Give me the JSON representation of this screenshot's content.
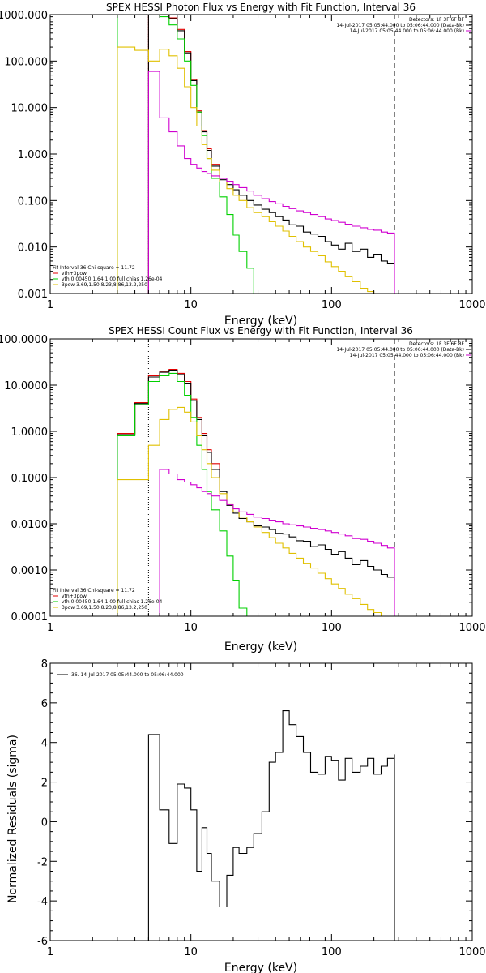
{
  "chart_data": [
    {
      "type": "line",
      "title": "SPEX HESSI Photon Flux vs Energy with Fit Function, Interval 36",
      "xlabel": "Energy (keV)",
      "ylabel": "",
      "x_scale": "log",
      "y_scale": "log",
      "xlim": [
        1,
        1000
      ],
      "ylim": [
        0.001,
        1000
      ],
      "x_ticks": [
        1,
        10,
        100,
        1000
      ],
      "x_tick_labels": [
        "1",
        "10",
        "100",
        "1000"
      ],
      "y_ticks": [
        0.001,
        0.01,
        0.1,
        1,
        10,
        100,
        1000
      ],
      "y_tick_labels": [
        "0.001",
        "0.010",
        "0.100",
        "1.000",
        "10.000",
        "100.000",
        "1000.000"
      ],
      "vlines": [
        {
          "x": 5,
          "style": "dotted"
        },
        {
          "x": 280,
          "style": "dashed"
        }
      ],
      "info_lines": [
        "Detectors: 1F 3F 6F 8F",
        "14-Jul-2017 05:05:44.000 to 05:06:44.000 (Data-Bk)",
        "14-Jul-2017 05:05:44.000 to 05:06:44.000 (Bk)"
      ],
      "fit_label": "Fit Interval 36   Chi-square = 11.72",
      "series": [
        {
          "name": "vth+3pow",
          "color": "#e00000",
          "x": [
            5,
            6,
            7,
            8,
            9,
            10,
            11,
            12,
            13,
            14,
            16
          ],
          "y": [
            1000,
            1000,
            850,
            480,
            160,
            40,
            8.5,
            3.2,
            1.3,
            0.6,
            0.32
          ]
        },
        {
          "name": "",
          "color": "#000000",
          "x": [
            5,
            6,
            7,
            8,
            9,
            10,
            11,
            12,
            13,
            14,
            16,
            18,
            20,
            22,
            25,
            28,
            32,
            36,
            40,
            45,
            50,
            56,
            63,
            71,
            80,
            90,
            100,
            112,
            125,
            140,
            160,
            180,
            200,
            225,
            250,
            280
          ],
          "y": [
            1000,
            980,
            820,
            450,
            150,
            38,
            8,
            3,
            1.2,
            0.55,
            0.28,
            0.22,
            0.17,
            0.13,
            0.1,
            0.08,
            0.065,
            0.055,
            0.045,
            0.038,
            0.03,
            0.028,
            0.021,
            0.019,
            0.017,
            0.013,
            0.011,
            0.009,
            0.012,
            0.008,
            0.009,
            0.006,
            0.007,
            0.005,
            0.0045,
            0.0045
          ]
        },
        {
          "name": "vth 0.00450,1.64,1.00  full chias 1.26e-04",
          "color": "#00d000",
          "x": [
            3,
            5,
            6,
            7,
            8,
            9,
            10,
            11,
            12,
            13,
            14,
            16,
            18,
            20,
            22,
            25,
            28
          ],
          "y": [
            1000,
            1000,
            900,
            600,
            300,
            100,
            30,
            8,
            2.5,
            0.8,
            0.3,
            0.12,
            0.05,
            0.018,
            0.008,
            0.0035,
            0.001
          ]
        },
        {
          "name": "3pow 3.69,1.50,8.23,8.86,13.2,250",
          "color": "#e0c000",
          "x": [
            3,
            4,
            5,
            6,
            7,
            8,
            9,
            10,
            11,
            12,
            13,
            14,
            16,
            18,
            20,
            22,
            25,
            28,
            32,
            36,
            40,
            45,
            50,
            56,
            63,
            71,
            80,
            90,
            100,
            112,
            125,
            140,
            160,
            180,
            200
          ],
          "y": [
            200,
            170,
            100,
            180,
            130,
            70,
            28,
            10,
            4,
            1.6,
            0.8,
            0.45,
            0.25,
            0.18,
            0.13,
            0.1,
            0.07,
            0.055,
            0.045,
            0.035,
            0.028,
            0.022,
            0.017,
            0.013,
            0.01,
            0.008,
            0.0065,
            0.0048,
            0.0038,
            0.003,
            0.0023,
            0.0018,
            0.0013,
            0.0011,
            0.001
          ]
        },
        {
          "name": "",
          "color": "#d000d0",
          "x": [
            5,
            6,
            7,
            8,
            9,
            10,
            11,
            12,
            13,
            14,
            16,
            18,
            20,
            22,
            25,
            28,
            32,
            36,
            40,
            45,
            50,
            56,
            63,
            71,
            80,
            90,
            100,
            112,
            125,
            140,
            160,
            180,
            200,
            225,
            250,
            280
          ],
          "y": [
            60,
            6,
            3,
            1.5,
            0.8,
            0.6,
            0.5,
            0.42,
            0.38,
            0.34,
            0.3,
            0.26,
            0.22,
            0.19,
            0.16,
            0.13,
            0.11,
            0.095,
            0.085,
            0.075,
            0.067,
            0.06,
            0.055,
            0.05,
            0.045,
            0.04,
            0.037,
            0.034,
            0.031,
            0.028,
            0.026,
            0.024,
            0.023,
            0.021,
            0.02,
            0.02
          ]
        }
      ]
    },
    {
      "type": "line",
      "title": "SPEX HESSI Count Flux vs Energy with Fit Function, Interval 36",
      "xlabel": "Energy (keV)",
      "ylabel": "",
      "x_scale": "log",
      "y_scale": "log",
      "xlim": [
        1,
        1000
      ],
      "ylim": [
        0.0001,
        100
      ],
      "x_ticks": [
        1,
        10,
        100,
        1000
      ],
      "x_tick_labels": [
        "1",
        "10",
        "100",
        "1000"
      ],
      "y_ticks": [
        0.0001,
        0.001,
        0.01,
        0.1,
        1,
        10,
        100
      ],
      "y_tick_labels": [
        "0.0001",
        "0.0010",
        "0.0100",
        "0.1000",
        "1.0000",
        "10.0000",
        "100.0000"
      ],
      "vlines": [
        {
          "x": 5,
          "style": "dotted"
        },
        {
          "x": 280,
          "style": "dashed"
        }
      ],
      "info_lines": [
        "Detectors: 1F 3F 6F 8F",
        "14-Jul-2017 05:05:44.000 to 05:06:44.000 (Data-Bk)",
        "14-Jul-2017 05:05:44.000 to 05:06:44.000 (Bk)"
      ],
      "fit_label": "Fit Interval 36   Chi-square = 11.72",
      "series": [
        {
          "name": "vth+3pow",
          "color": "#e00000",
          "x": [
            3,
            4,
            5,
            6,
            7,
            8,
            9,
            10,
            11,
            12,
            13,
            14,
            16
          ],
          "y": [
            0.9,
            4.2,
            16,
            20,
            22,
            18,
            12,
            5,
            2,
            0.9,
            0.4,
            0.2,
            0.06
          ]
        },
        {
          "name": "",
          "color": "#000000",
          "x": [
            3,
            4,
            5,
            6,
            7,
            8,
            9,
            10,
            11,
            12,
            13,
            14,
            16,
            18,
            20,
            22,
            25,
            28,
            32,
            36,
            40,
            45,
            50,
            56,
            63,
            71,
            80,
            90,
            100,
            112,
            125,
            140,
            160,
            180,
            200,
            225,
            250,
            280
          ],
          "y": [
            0.85,
            4,
            15,
            19,
            21,
            17,
            11,
            4.6,
            1.8,
            0.8,
            0.35,
            0.15,
            0.05,
            0.025,
            0.017,
            0.013,
            0.011,
            0.009,
            0.0085,
            0.0075,
            0.0062,
            0.006,
            0.0052,
            0.0043,
            0.0042,
            0.0032,
            0.0035,
            0.0028,
            0.0022,
            0.0025,
            0.0018,
            0.0013,
            0.0016,
            0.0012,
            0.001,
            0.0008,
            0.0007,
            0.0006
          ]
        },
        {
          "name": "vth 0.00450,1.64,1.00  full chias 1.26e-04",
          "color": "#00d000",
          "x": [
            3,
            4,
            5,
            6,
            7,
            8,
            9,
            10,
            11,
            12,
            13,
            14,
            16,
            18,
            20,
            22,
            25,
            28
          ],
          "y": [
            0.8,
            3.8,
            12,
            16,
            18,
            12,
            6,
            2,
            0.5,
            0.15,
            0.05,
            0.02,
            0.007,
            0.002,
            0.0006,
            0.00015,
            0.0001,
            0.0001
          ]
        },
        {
          "name": "3pow 3.69,1.50,8.23,8.86,13.2,250",
          "color": "#e0c000",
          "x": [
            3,
            4,
            5,
            6,
            7,
            8,
            9,
            10,
            11,
            12,
            13,
            14,
            16,
            18,
            20,
            22,
            25,
            28,
            32,
            36,
            40,
            45,
            50,
            56,
            63,
            71,
            80,
            90,
            100,
            112,
            125,
            140,
            160,
            180,
            200,
            225,
            250,
            280
          ],
          "y": [
            0.09,
            0.09,
            0.5,
            1.8,
            3,
            3.3,
            2.6,
            1.6,
            0.8,
            0.4,
            0.2,
            0.1,
            0.045,
            0.027,
            0.018,
            0.014,
            0.011,
            0.0085,
            0.0065,
            0.005,
            0.0038,
            0.003,
            0.0023,
            0.0018,
            0.0014,
            0.0011,
            0.00085,
            0.00065,
            0.0005,
            0.0004,
            0.0003,
            0.00024,
            0.00018,
            0.00014,
            0.00012,
            0.0001,
            0.0001,
            0.0001
          ]
        },
        {
          "name": "",
          "color": "#d000d0",
          "x": [
            5,
            6,
            7,
            8,
            9,
            10,
            11,
            12,
            13,
            14,
            16,
            18,
            20,
            22,
            25,
            28,
            32,
            36,
            40,
            45,
            50,
            56,
            63,
            71,
            80,
            90,
            100,
            112,
            125,
            140,
            160,
            180,
            200,
            225,
            250,
            280
          ],
          "y": [
            0.0001,
            0.15,
            0.12,
            0.09,
            0.08,
            0.07,
            0.06,
            0.05,
            0.045,
            0.04,
            0.032,
            0.026,
            0.021,
            0.018,
            0.016,
            0.014,
            0.013,
            0.012,
            0.011,
            0.01,
            0.0095,
            0.009,
            0.0085,
            0.008,
            0.0075,
            0.007,
            0.0065,
            0.006,
            0.0055,
            0.0048,
            0.0046,
            0.0042,
            0.0038,
            0.0034,
            0.003,
            0.0026
          ]
        }
      ]
    },
    {
      "type": "line",
      "title": "",
      "xlabel": "Energy (keV)",
      "ylabel": "Normalized Residuals (sigma)",
      "x_scale": "log",
      "y_scale": "linear",
      "xlim": [
        1,
        1000
      ],
      "ylim": [
        -6,
        8
      ],
      "x_ticks": [
        1,
        10,
        100,
        1000
      ],
      "x_tick_labels": [
        "1",
        "10",
        "100",
        "1000"
      ],
      "y_ticks": [
        -6,
        -4,
        -2,
        0,
        2,
        4,
        6,
        8
      ],
      "y_tick_labels": [
        "-6",
        "-4",
        "-2",
        "0",
        "2",
        "4",
        "6",
        "8"
      ],
      "series": [
        {
          "name": "36. 14-Jul-2017 05:05:44.000 to 05:06:44.000",
          "color": "#000000",
          "x": [
            5,
            6,
            7,
            8,
            9,
            10,
            11,
            12,
            13,
            14,
            16,
            18,
            20,
            22,
            25,
            28,
            32,
            36,
            40,
            45,
            50,
            56,
            63,
            71,
            80,
            90,
            100,
            112,
            125,
            140,
            160,
            180,
            200,
            225,
            250,
            280
          ],
          "y": [
            4.4,
            0.6,
            -1.1,
            1.9,
            1.7,
            0.6,
            -2.5,
            -0.3,
            -1.6,
            -3.0,
            -4.3,
            -2.7,
            -1.3,
            -1.6,
            -1.3,
            -0.6,
            0.5,
            3.0,
            3.5,
            5.6,
            4.9,
            4.3,
            3.5,
            2.5,
            2.4,
            3.3,
            3.1,
            2.1,
            3.2,
            2.5,
            2.8,
            3.2,
            2.4,
            2.8,
            3.2,
            3.4
          ]
        }
      ]
    }
  ]
}
